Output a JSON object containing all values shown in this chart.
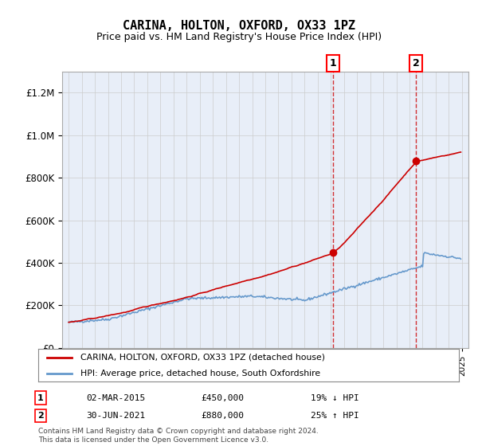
{
  "title": "CARINA, HOLTON, OXFORD, OX33 1PZ",
  "subtitle": "Price paid vs. HM Land Registry's House Price Index (HPI)",
  "legend_line1": "CARINA, HOLTON, OXFORD, OX33 1PZ (detached house)",
  "legend_line2": "HPI: Average price, detached house, South Oxfordshire",
  "annotation1": {
    "num": "1",
    "date": "02-MAR-2015",
    "price": "£450,000",
    "pct": "19% ↓ HPI",
    "x_year": 2015.17,
    "price_val": 450000
  },
  "annotation2": {
    "num": "2",
    "date": "30-JUN-2021",
    "price": "£880,000",
    "pct": "25% ↑ HPI",
    "x_year": 2021.5,
    "price_val": 880000
  },
  "footnote1": "Contains HM Land Registry data © Crown copyright and database right 2024.",
  "footnote2": "This data is licensed under the Open Government Licence v3.0.",
  "red_color": "#cc0000",
  "blue_color": "#6699cc",
  "background_color": "#e8eef8",
  "plot_bg_color": "#ffffff",
  "ylim": [
    0,
    1300000
  ],
  "xlim_start": 1994.5,
  "xlim_end": 2025.5
}
